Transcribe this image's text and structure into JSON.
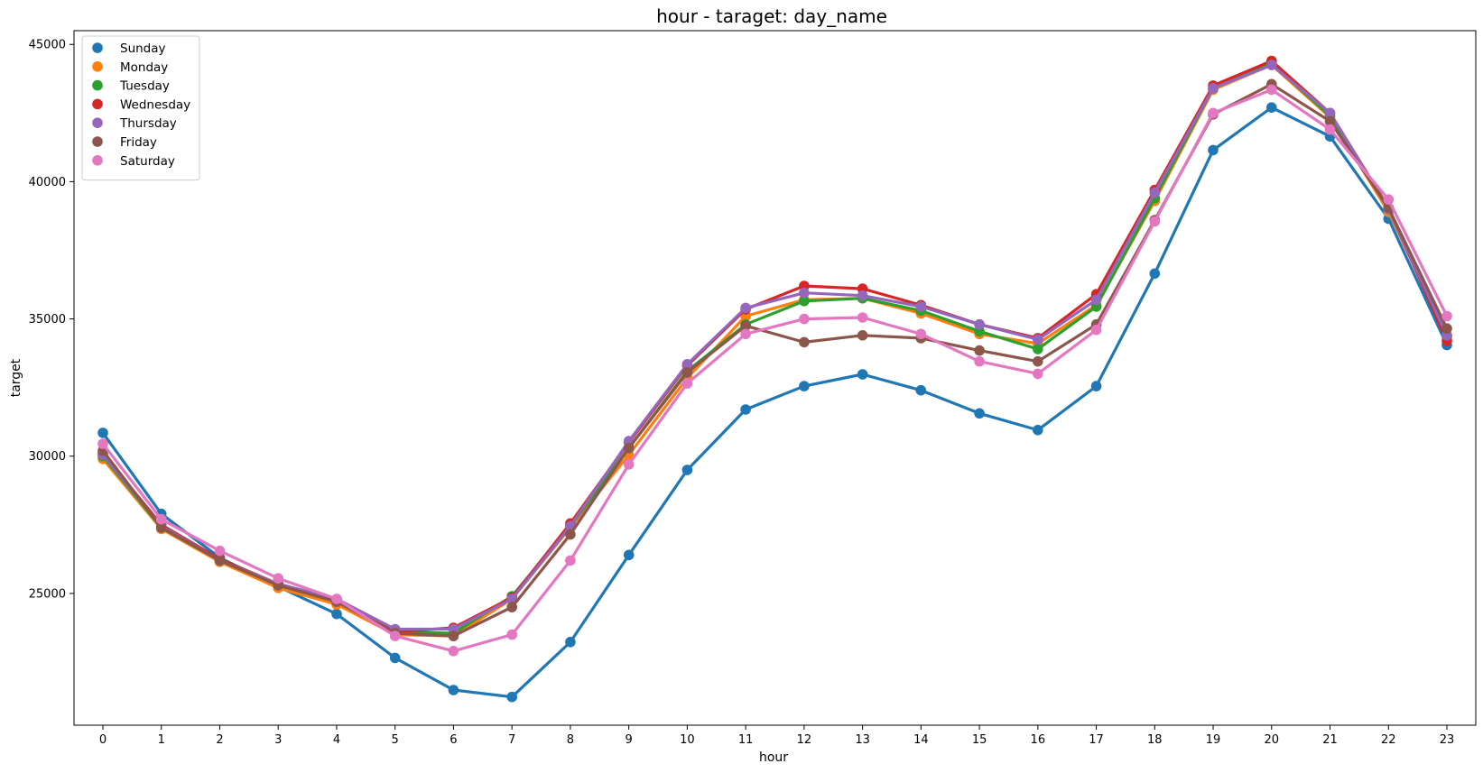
{
  "chart_data": {
    "type": "line",
    "title": "hour - taraget: day_name",
    "xlabel": "hour",
    "ylabel": "target",
    "categories": [
      0,
      1,
      2,
      3,
      4,
      5,
      6,
      7,
      8,
      9,
      10,
      11,
      12,
      13,
      14,
      15,
      16,
      17,
      18,
      19,
      20,
      21,
      22,
      23
    ],
    "ylim": [
      20200,
      45500
    ],
    "yticks": [
      25000,
      30000,
      35000,
      40000,
      45000
    ],
    "grid": false,
    "legend_position": "top-left",
    "series": [
      {
        "name": "Sunday",
        "color": "#1f77b4",
        "values": [
          30850,
          27900,
          26300,
          25250,
          24250,
          22650,
          21480,
          21230,
          23230,
          26400,
          29500,
          31700,
          32550,
          32980,
          32400,
          31560,
          30950,
          32550,
          36650,
          41150,
          42700,
          41650,
          38650,
          34050
        ]
      },
      {
        "name": "Monday",
        "color": "#ff7f0e",
        "values": [
          29900,
          27350,
          26150,
          25200,
          24600,
          23500,
          23450,
          24800,
          27400,
          30050,
          32850,
          35100,
          35700,
          35750,
          35200,
          34450,
          34100,
          35500,
          39300,
          43350,
          44250,
          42350,
          38900,
          34400
        ]
      },
      {
        "name": "Tuesday",
        "color": "#2ca02c",
        "values": [
          30000,
          27400,
          26200,
          25300,
          24700,
          23600,
          23550,
          24900,
          27450,
          30300,
          33100,
          34800,
          35650,
          35750,
          35300,
          34550,
          33900,
          35450,
          39400,
          43400,
          44300,
          42400,
          39000,
          34350
        ]
      },
      {
        "name": "Wednesday",
        "color": "#d62728",
        "values": [
          30100,
          27500,
          26250,
          25350,
          24750,
          23600,
          23750,
          24850,
          27550,
          30500,
          33300,
          35350,
          36200,
          36100,
          35500,
          34800,
          34300,
          35900,
          39700,
          43500,
          44400,
          42500,
          39050,
          34200
        ]
      },
      {
        "name": "Thursday",
        "color": "#9467bd",
        "values": [
          30050,
          27450,
          26200,
          25350,
          24800,
          23700,
          23700,
          24800,
          27450,
          30550,
          33350,
          35400,
          35950,
          35850,
          35450,
          34800,
          34250,
          35700,
          39600,
          43400,
          44250,
          42500,
          39000,
          34400
        ]
      },
      {
        "name": "Friday",
        "color": "#8c564b",
        "values": [
          30200,
          27400,
          26200,
          25300,
          24700,
          23550,
          23450,
          24500,
          27150,
          30300,
          33050,
          34750,
          34150,
          34400,
          34300,
          33850,
          33450,
          34800,
          38600,
          42450,
          43550,
          42200,
          39050,
          34650
        ]
      },
      {
        "name": "Saturday",
        "color": "#e377c2",
        "values": [
          30450,
          27700,
          26550,
          25550,
          24800,
          23450,
          22900,
          23500,
          26200,
          29700,
          32650,
          34450,
          35000,
          35050,
          34450,
          33450,
          33000,
          34600,
          38550,
          42500,
          43350,
          41900,
          39350,
          35100
        ]
      }
    ]
  }
}
